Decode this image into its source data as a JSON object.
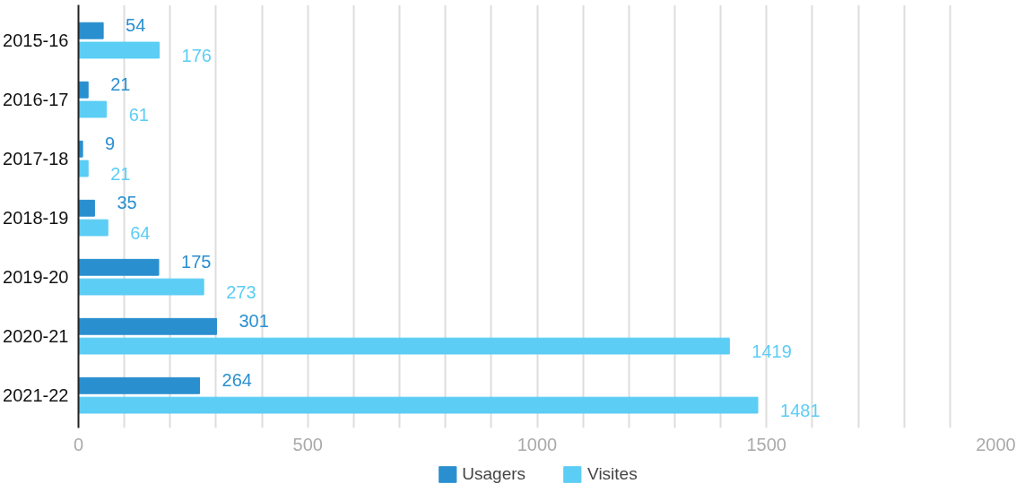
{
  "chart_data": {
    "type": "bar",
    "orientation": "horizontal",
    "categories": [
      "2015-16",
      "2016-17",
      "2017-18",
      "2018-19",
      "2019-20",
      "2020-21",
      "2021-22"
    ],
    "series": [
      {
        "name": "Usagers",
        "color": "#2a8fcf",
        "values": [
          54,
          21,
          9,
          35,
          175,
          301,
          264
        ]
      },
      {
        "name": "Visites",
        "color": "#5ccdf4",
        "values": [
          176,
          61,
          21,
          64,
          273,
          1419,
          1481
        ]
      }
    ],
    "xlim": [
      0,
      2000
    ],
    "xticks": [
      0,
      {
        "value": 100,
        "label": null
      },
      {
        "value": 200,
        "label": null
      },
      {
        "value": 300,
        "label": null
      },
      {
        "value": 400,
        "label": null
      },
      500,
      {
        "value": 600,
        "label": null
      },
      {
        "value": 700,
        "label": null
      },
      {
        "value": 800,
        "label": null
      },
      {
        "value": 900,
        "label": null
      },
      1000,
      {
        "value": 1100,
        "label": null
      },
      {
        "value": 1200,
        "label": null
      },
      {
        "value": 1300,
        "label": null
      },
      {
        "value": 1400,
        "label": null
      },
      1500,
      {
        "value": 1600,
        "label": null
      },
      {
        "value": 1700,
        "label": null
      },
      {
        "value": 1800,
        "label": null
      },
      {
        "value": 1900,
        "label": null
      },
      2000
    ],
    "grid": "x",
    "data_labels": true,
    "legend": "bottom"
  }
}
